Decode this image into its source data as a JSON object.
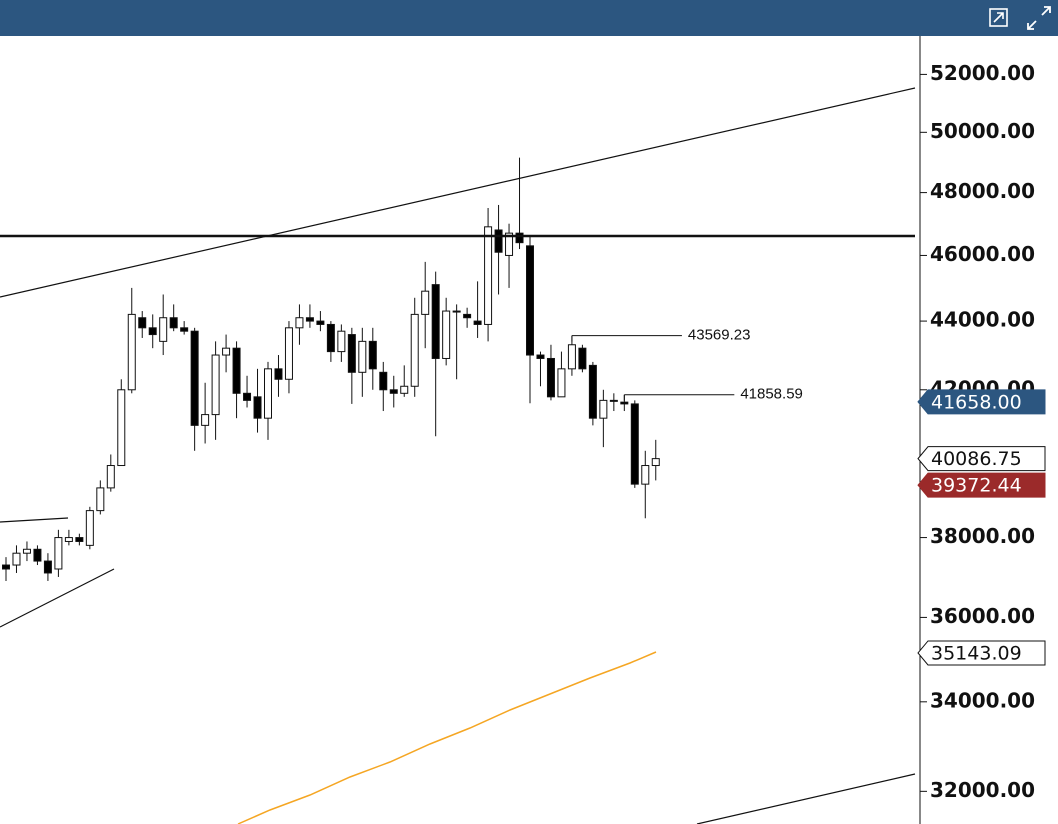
{
  "chart_data": {
    "type": "candlestick",
    "log_scale": true,
    "ylim": [
      31300,
      53370
    ],
    "yticks": [
      {
        "value": 32000,
        "label": "32000.00"
      },
      {
        "value": 34000,
        "label": "34000.00"
      },
      {
        "value": 36000,
        "label": "36000.00"
      },
      {
        "value": 38000,
        "label": "38000.00"
      },
      {
        "value": 40000,
        "label": "40000.00"
      },
      {
        "value": 42000,
        "label": "42000.00"
      },
      {
        "value": 44000,
        "label": "44000.00"
      },
      {
        "value": 46000,
        "label": "46000.00"
      },
      {
        "value": 48000,
        "label": "48000.00"
      },
      {
        "value": 50000,
        "label": "50000.00"
      },
      {
        "value": 52000,
        "label": "52000.00"
      }
    ],
    "up_color": "#ffffff",
    "down_color": "#000000",
    "open": [
      37300,
      37300,
      37600,
      37700,
      37400,
      37200,
      37900,
      38000,
      37800,
      38700,
      39300,
      39900,
      42000,
      44100,
      43800,
      43400,
      44100,
      43800,
      43700,
      41000,
      41300,
      43000,
      43200,
      41900,
      41800,
      41200,
      42600,
      42300,
      43800,
      44100,
      44000,
      43900,
      43100,
      43600,
      42500,
      43400,
      42500,
      42000,
      41900,
      42100,
      44200,
      45100,
      42900,
      44300,
      44200,
      44000,
      43900,
      46800,
      46000,
      46700,
      46300,
      43000,
      42900,
      41800,
      42600,
      43200,
      42700,
      41200,
      41700,
      41650,
      41600,
      39400,
      39900
    ],
    "high": [
      37500,
      37800,
      37900,
      37800,
      37600,
      38200,
      38200,
      38100,
      38800,
      39500,
      40200,
      42300,
      45000,
      44300,
      44200,
      44800,
      44500,
      44000,
      43800,
      42200,
      43400,
      43600,
      43400,
      42400,
      42600,
      42800,
      43000,
      44000,
      44500,
      44500,
      44300,
      44000,
      43900,
      43800,
      43800,
      43800,
      42800,
      42400,
      42700,
      44700,
      45800,
      45500,
      44700,
      44500,
      44400,
      45200,
      47500,
      47600,
      47000,
      49150,
      46600,
      43100,
      43300,
      43100,
      43569.23,
      43300,
      42800,
      42000,
      41900,
      41858.59,
      41700,
      40300,
      40600
    ],
    "low": [
      36900,
      37100,
      37400,
      37300,
      36900,
      37000,
      37800,
      37800,
      37700,
      38600,
      39200,
      39900,
      41900,
      43500,
      43200,
      43000,
      43700,
      43600,
      40300,
      40500,
      40600,
      42500,
      41200,
      41500,
      40800,
      40600,
      41800,
      41900,
      43300,
      43800,
      43700,
      42800,
      42800,
      41600,
      41800,
      42000,
      41400,
      41500,
      41800,
      41800,
      43200,
      40700,
      42700,
      42300,
      43800,
      43500,
      43400,
      44800,
      45000,
      46200,
      41620,
      42100,
      41700,
      41800,
      42400,
      42500,
      41000,
      40400,
      41400,
      41400,
      39300,
      38500,
      39500
    ],
    "close": [
      37200,
      37600,
      37700,
      37400,
      37100,
      38000,
      38000,
      37900,
      38700,
      39300,
      39900,
      42000,
      44200,
      43800,
      43600,
      44100,
      43800,
      43700,
      41000,
      41300,
      43000,
      43200,
      41900,
      41700,
      41200,
      42600,
      42300,
      43800,
      44100,
      44000,
      43900,
      43100,
      43700,
      42500,
      43400,
      42600,
      42000,
      41900,
      42100,
      44200,
      44900,
      42900,
      44300,
      44300,
      44100,
      43900,
      46900,
      46100,
      46700,
      46400,
      43000,
      42900,
      41800,
      42600,
      43300,
      42600,
      41200,
      41700,
      41700,
      41600,
      39400,
      39900,
      40086.75
    ],
    "level_annotations": [
      43569.23,
      41858.59
    ],
    "price_labels": [
      {
        "value": 41658,
        "label": "41658.00",
        "color": "#2c5680",
        "text_color": "#ffffff"
      },
      {
        "value": 40086.75,
        "label": "40086.75",
        "color": "#ffffff",
        "text_color": "#111111"
      },
      {
        "value": 39372.44,
        "label": "39372.44",
        "color": "#9b2a2a",
        "text_color": "#ffffff"
      },
      {
        "value": 35143.09,
        "label": "35143.09",
        "color": "#ffffff",
        "text_color": "#111111"
      }
    ]
  }
}
